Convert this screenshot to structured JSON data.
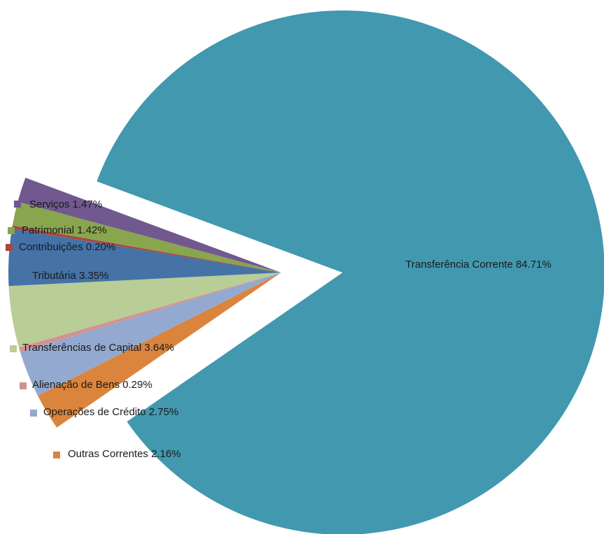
{
  "chart_data": {
    "type": "pie",
    "style": "exploded",
    "slices": [
      {
        "label": "Transferência Corrente",
        "value": 84.71,
        "display": "84.71%",
        "color": "#4198AF"
      },
      {
        "label": "Outras Correntes",
        "value": 2.16,
        "display": "2.16%",
        "color": "#DB843D"
      },
      {
        "label": "Operações de Crédito",
        "value": 2.75,
        "display": "2.75%",
        "color": "#93A9CF"
      },
      {
        "label": "Alienação de Bens",
        "value": 0.29,
        "display": "0.29%",
        "color": "#D19392"
      },
      {
        "label": "Transferências de Capital",
        "value": 3.64,
        "display": "3.64%",
        "color": "#B9CD96"
      },
      {
        "label": "Tributária",
        "value": 3.35,
        "display": "3.35%",
        "color": "#4572A7"
      },
      {
        "label": "Contribuições",
        "value": 0.2,
        "display": "0.20%",
        "color": "#AA4643"
      },
      {
        "label": "Patrimonial",
        "value": 1.42,
        "display": "1.42%",
        "color": "#89A54E"
      },
      {
        "label": "Serviços",
        "value": 1.47,
        "display": "1.47%",
        "color": "#71588F"
      }
    ]
  }
}
